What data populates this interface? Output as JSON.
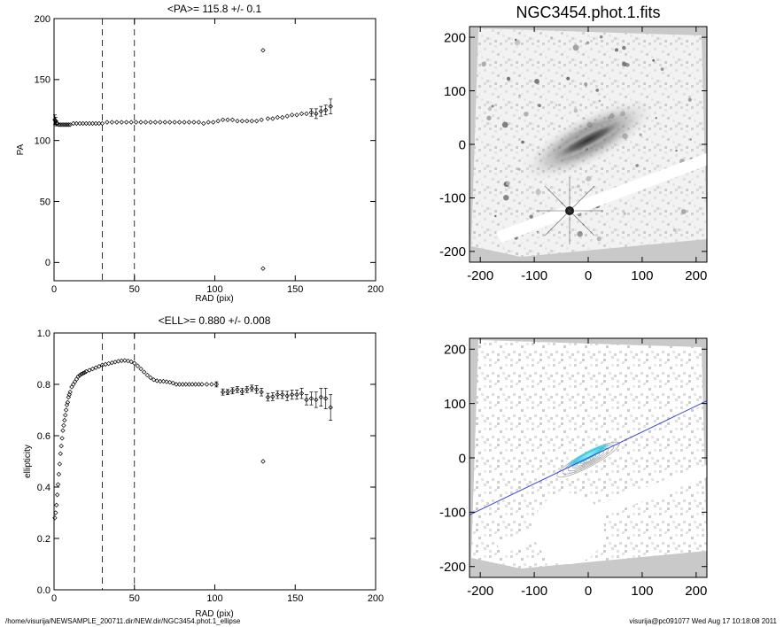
{
  "footer": {
    "path": "/home/visurija/NEWSAMPLE_200711.dir/NEW.dir/NGC3454.phot.1_ellipse",
    "user_stamp": "visurija@pc091077  Wed Aug 17 10:18:08 2011"
  },
  "colors": {
    "line": "#000000",
    "fit_line": "#3a46d6",
    "contour": "#e8e8e8",
    "core": "#39c9e0",
    "panel_bg": "#c9c9c9"
  },
  "chart_data": [
    {
      "type": "scatter",
      "title": "<PA>= 115.8 +/-   0.1",
      "xlabel": "RAD (pix)",
      "ylabel": "PA",
      "xlim": [
        0,
        200
      ],
      "ylim": [
        -15,
        200
      ],
      "xticks": [
        0,
        50,
        100,
        150,
        200
      ],
      "yticks": [
        0,
        50,
        100,
        150,
        200
      ],
      "xtick_labels": [
        "0",
        "50",
        "100",
        "150",
        "200"
      ],
      "ytick_labels": [
        "0",
        "50",
        "100",
        "150",
        "200"
      ],
      "vlines": [
        30,
        50
      ],
      "points": [
        [
          0.5,
          117
        ],
        [
          1,
          116
        ],
        [
          1.5,
          114
        ],
        [
          2,
          114
        ],
        [
          3,
          113
        ],
        [
          4,
          113
        ],
        [
          5,
          113
        ],
        [
          6,
          113
        ],
        [
          7,
          113
        ],
        [
          8,
          113
        ],
        [
          9,
          113
        ],
        [
          10,
          113
        ],
        [
          12,
          114
        ],
        [
          14,
          114
        ],
        [
          16,
          114
        ],
        [
          18,
          114
        ],
        [
          20,
          114
        ],
        [
          22,
          114
        ],
        [
          24,
          114
        ],
        [
          26,
          114
        ],
        [
          28,
          114
        ],
        [
          30,
          114
        ],
        [
          33,
          115
        ],
        [
          36,
          115
        ],
        [
          39,
          115
        ],
        [
          42,
          115
        ],
        [
          45,
          115
        ],
        [
          48,
          115
        ],
        [
          51,
          115
        ],
        [
          54,
          115
        ],
        [
          57,
          115
        ],
        [
          60,
          115
        ],
        [
          63,
          115
        ],
        [
          66,
          115
        ],
        [
          69,
          115
        ],
        [
          72,
          115
        ],
        [
          75,
          115
        ],
        [
          78,
          115
        ],
        [
          81,
          115
        ],
        [
          84,
          115
        ],
        [
          87,
          115
        ],
        [
          90,
          115
        ],
        [
          93,
          114
        ],
        [
          96,
          115
        ],
        [
          99,
          115
        ],
        [
          102,
          116
        ],
        [
          105,
          117
        ],
        [
          108,
          117
        ],
        [
          111,
          117
        ],
        [
          114,
          116
        ],
        [
          117,
          116
        ],
        [
          120,
          116
        ],
        [
          123,
          116
        ],
        [
          126,
          116
        ],
        [
          129,
          117
        ],
        [
          130,
          174
        ],
        [
          130,
          -5
        ],
        [
          133,
          118
        ],
        [
          136,
          118
        ],
        [
          139,
          119
        ],
        [
          142,
          119
        ],
        [
          145,
          120
        ],
        [
          148,
          121
        ],
        [
          151,
          121
        ],
        [
          154,
          122
        ],
        [
          157,
          122
        ],
        [
          160,
          123
        ],
        [
          163,
          122
        ],
        [
          166,
          124
        ],
        [
          169,
          125
        ],
        [
          172,
          128
        ]
      ],
      "errors": [
        [
          0.5,
          4
        ],
        [
          1,
          3
        ],
        [
          1.5,
          2
        ],
        [
          155,
          3
        ],
        [
          160,
          3
        ],
        [
          163,
          4
        ],
        [
          166,
          4
        ],
        [
          169,
          4
        ],
        [
          172,
          6
        ]
      ]
    },
    {
      "type": "scatter",
      "title": "<ELL>= 0.880 +/-  0.008",
      "xlabel": "RAD (pix)",
      "ylabel": "ellipticity",
      "xlim": [
        0,
        200
      ],
      "ylim": [
        0.0,
        1.0
      ],
      "xticks": [
        0,
        50,
        100,
        150,
        200
      ],
      "yticks": [
        0.0,
        0.2,
        0.4,
        0.6,
        0.8,
        1.0
      ],
      "xtick_labels": [
        "0",
        "50",
        "100",
        "150",
        "200"
      ],
      "ytick_labels": [
        "0.0",
        "0.2",
        "0.4",
        "0.6",
        "0.8",
        "1.0"
      ],
      "vlines": [
        30,
        50
      ],
      "points": [
        [
          0.5,
          0.28
        ],
        [
          1,
          0.3
        ],
        [
          1.5,
          0.33
        ],
        [
          2,
          0.37
        ],
        [
          2.5,
          0.41
        ],
        [
          3,
          0.45
        ],
        [
          3.5,
          0.49
        ],
        [
          4,
          0.53
        ],
        [
          4.5,
          0.56
        ],
        [
          5,
          0.59
        ],
        [
          5.5,
          0.62
        ],
        [
          6,
          0.64
        ],
        [
          6.5,
          0.66
        ],
        [
          7,
          0.68
        ],
        [
          7.5,
          0.7
        ],
        [
          8,
          0.72
        ],
        [
          8.5,
          0.73
        ],
        [
          9,
          0.75
        ],
        [
          9.5,
          0.76
        ],
        [
          10,
          0.77
        ],
        [
          11,
          0.79
        ],
        [
          12,
          0.8
        ],
        [
          13,
          0.81
        ],
        [
          14,
          0.82
        ],
        [
          15,
          0.83
        ],
        [
          16,
          0.835
        ],
        [
          17,
          0.84
        ],
        [
          18,
          0.843
        ],
        [
          19,
          0.846
        ],
        [
          20,
          0.85
        ],
        [
          22,
          0.855
        ],
        [
          24,
          0.86
        ],
        [
          26,
          0.865
        ],
        [
          28,
          0.87
        ],
        [
          30,
          0.875
        ],
        [
          32,
          0.878
        ],
        [
          34,
          0.881
        ],
        [
          36,
          0.884
        ],
        [
          38,
          0.887
        ],
        [
          40,
          0.89
        ],
        [
          42,
          0.892
        ],
        [
          44,
          0.893
        ],
        [
          46,
          0.891
        ],
        [
          48,
          0.888
        ],
        [
          50,
          0.882
        ],
        [
          52,
          0.872
        ],
        [
          54,
          0.86
        ],
        [
          56,
          0.848
        ],
        [
          58,
          0.836
        ],
        [
          60,
          0.826
        ],
        [
          62,
          0.818
        ],
        [
          64,
          0.814
        ],
        [
          66,
          0.812
        ],
        [
          68,
          0.812
        ],
        [
          70,
          0.81
        ],
        [
          72,
          0.808
        ],
        [
          74,
          0.805
        ],
        [
          76,
          0.8
        ],
        [
          78,
          0.8
        ],
        [
          80,
          0.8
        ],
        [
          82,
          0.8
        ],
        [
          84,
          0.8
        ],
        [
          86,
          0.8
        ],
        [
          88,
          0.8
        ],
        [
          90,
          0.8
        ],
        [
          92,
          0.8
        ],
        [
          95,
          0.8
        ],
        [
          98,
          0.8
        ],
        [
          101,
          0.8
        ],
        [
          105,
          0.77
        ],
        [
          108,
          0.77
        ],
        [
          111,
          0.775
        ],
        [
          114,
          0.78
        ],
        [
          117,
          0.772
        ],
        [
          120,
          0.78
        ],
        [
          123,
          0.785
        ],
        [
          126,
          0.78
        ],
        [
          129,
          0.77
        ],
        [
          130,
          0.5
        ],
        [
          133,
          0.75
        ],
        [
          136,
          0.752
        ],
        [
          139,
          0.76
        ],
        [
          142,
          0.76
        ],
        [
          145,
          0.755
        ],
        [
          148,
          0.76
        ],
        [
          151,
          0.76
        ],
        [
          154,
          0.765
        ],
        [
          157,
          0.74
        ],
        [
          160,
          0.745
        ],
        [
          163,
          0.74
        ],
        [
          166,
          0.75
        ],
        [
          169,
          0.745
        ],
        [
          172,
          0.71
        ]
      ],
      "errors": [
        [
          101,
          0.01
        ],
        [
          105,
          0.012
        ],
        [
          108,
          0.01
        ],
        [
          111,
          0.012
        ],
        [
          114,
          0.012
        ],
        [
          117,
          0.012
        ],
        [
          120,
          0.012
        ],
        [
          123,
          0.012
        ],
        [
          126,
          0.015
        ],
        [
          129,
          0.015
        ],
        [
          133,
          0.015
        ],
        [
          136,
          0.015
        ],
        [
          139,
          0.015
        ],
        [
          142,
          0.015
        ],
        [
          145,
          0.018
        ],
        [
          148,
          0.018
        ],
        [
          151,
          0.018
        ],
        [
          154,
          0.02
        ],
        [
          157,
          0.02
        ],
        [
          160,
          0.025
        ],
        [
          163,
          0.03
        ],
        [
          166,
          0.035
        ],
        [
          169,
          0.04
        ],
        [
          172,
          0.05
        ]
      ]
    },
    {
      "type": "heatmap",
      "title": "NGC3454.phot.1.fits",
      "xlabel": "",
      "ylabel": "",
      "xlim": [
        -220,
        220
      ],
      "ylim": [
        -220,
        220
      ],
      "xticks": [
        -200,
        -100,
        0,
        100,
        200
      ],
      "yticks": [
        -200,
        -100,
        0,
        100,
        200
      ],
      "xtick_labels": [
        "-200",
        "-100",
        "0",
        "100",
        "200"
      ],
      "ytick_labels": [
        "-200",
        "-100",
        "0",
        "100",
        "200"
      ],
      "galaxy": {
        "cx": 0,
        "cy": 5,
        "pa_deg": 115.8,
        "semi_major": 80,
        "ellipticity": 0.88
      },
      "bright_star": [
        -32,
        -128
      ]
    },
    {
      "type": "heatmap",
      "title": "",
      "xlabel": "",
      "ylabel": "",
      "xlim": [
        -220,
        220
      ],
      "ylim": [
        -220,
        220
      ],
      "xticks": [
        -200,
        -100,
        0,
        100,
        200
      ],
      "yticks": [
        -200,
        -100,
        0,
        100,
        200
      ],
      "xtick_labels": [
        "-200",
        "-100",
        "0",
        "100",
        "200"
      ],
      "ytick_labels": [
        "-200",
        "-100",
        "0",
        "100",
        "200"
      ],
      "fit_line": [
        [
          -220,
          -105
        ],
        [
          220,
          105
        ]
      ],
      "mask_circle": {
        "cx": -35,
        "cy": -125,
        "r": 58
      },
      "contours": [
        8,
        16,
        26,
        38,
        52,
        68,
        86,
        105
      ]
    }
  ]
}
